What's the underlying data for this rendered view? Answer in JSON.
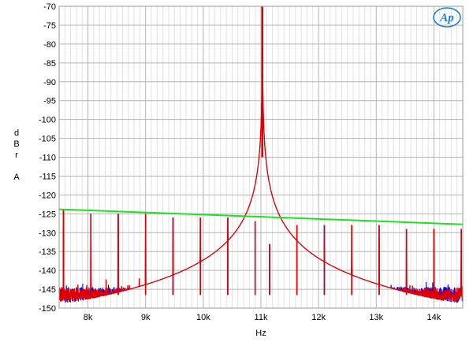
{
  "chart_data": {
    "type": "line",
    "xlabel": "Hz",
    "ylabel_lines": [
      "d",
      "B",
      "r",
      "",
      "A"
    ],
    "xlim": [
      7500,
      14500
    ],
    "ylim": [
      -150,
      -70
    ],
    "grid": true,
    "x_ticks": [
      {
        "value": 8000,
        "label": "8k"
      },
      {
        "value": 9000,
        "label": "9k"
      },
      {
        "value": 10000,
        "label": "10k"
      },
      {
        "value": 11000,
        "label": "11k"
      },
      {
        "value": 12000,
        "label": "12k"
      },
      {
        "value": 13000,
        "label": "13k"
      },
      {
        "value": 14000,
        "label": "14k"
      }
    ],
    "y_ticks": [
      {
        "value": -70,
        "label": "-70"
      },
      {
        "value": -75,
        "label": "-75"
      },
      {
        "value": -80,
        "label": "-80"
      },
      {
        "value": -85,
        "label": "-85"
      },
      {
        "value": -90,
        "label": "-90"
      },
      {
        "value": -95,
        "label": "-95"
      },
      {
        "value": -100,
        "label": "-100"
      },
      {
        "value": -105,
        "label": "-105"
      },
      {
        "value": -110,
        "label": "-110"
      },
      {
        "value": -115,
        "label": "-115"
      },
      {
        "value": -120,
        "label": "-120"
      },
      {
        "value": -125,
        "label": "-125"
      },
      {
        "value": -130,
        "label": "-130"
      },
      {
        "value": -135,
        "label": "-135"
      },
      {
        "value": -140,
        "label": "-140"
      },
      {
        "value": -145,
        "label": "-145"
      },
      {
        "value": -150,
        "label": "-150"
      }
    ],
    "series": [
      {
        "color": "#0000e0",
        "noise_floor_db": -146.5,
        "carrier_hz": 11025,
        "carrier_db": -70,
        "spur_hz": [
          7575,
          8050,
          8525,
          9000,
          9475,
          9950,
          10425,
          10900,
          11150,
          11625,
          12100,
          12575,
          13050,
          13525,
          14000,
          14475
        ],
        "spur_db": [
          -124,
          -125,
          -125,
          -125,
          -126,
          -126,
          -126,
          -127,
          -133,
          -128,
          -128,
          -128,
          -128,
          -129,
          -129,
          -129
        ]
      },
      {
        "color": "#e00000",
        "noise_floor_db": -146.5,
        "carrier_hz": 11025,
        "carrier_db": -70,
        "spur_hz": [
          7575,
          8050,
          8525,
          9000,
          9475,
          9950,
          10425,
          10900,
          11150,
          11625,
          12100,
          12575,
          13050,
          13525,
          14000,
          14475
        ],
        "spur_db": [
          -124,
          -125,
          -125,
          -125,
          -126,
          -126,
          -126,
          -127,
          -133,
          -128,
          -128,
          -128,
          -128,
          -129,
          -129,
          -129
        ]
      },
      {
        "color": "#20e020",
        "x": [
          7500,
          14500
        ],
        "y": [
          -123.8,
          -127.8
        ]
      }
    ]
  },
  "logo": {
    "text": "AP",
    "color": "#1e7fd0"
  }
}
